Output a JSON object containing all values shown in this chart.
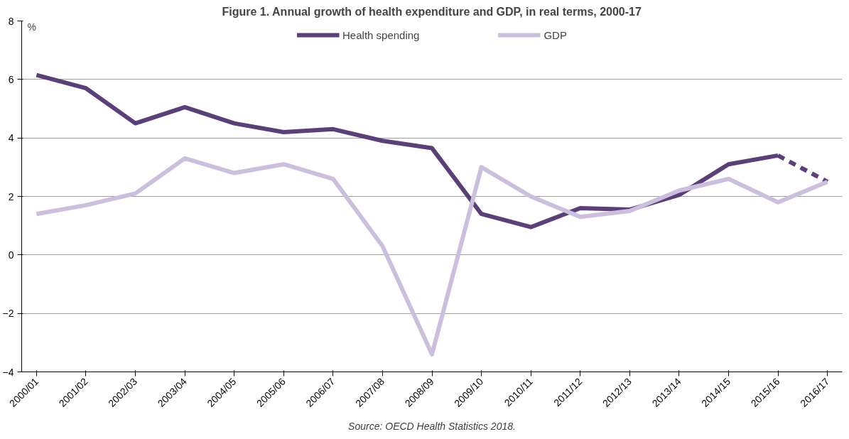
{
  "chart_data": {
    "type": "line",
    "title": "Figure 1. Annual growth of health expenditure and GDP, in real terms, 2000-17",
    "ylabel": "%",
    "categories": [
      "2000/01",
      "2001/02",
      "2002/03",
      "2003/04",
      "2004/05",
      "2005/06",
      "2006/07",
      "2007/08",
      "2008/09",
      "2009/10",
      "2010/11",
      "2011/12",
      "2012/13",
      "2013/14",
      "2014/15",
      "2015/16",
      "2016/17"
    ],
    "series": [
      {
        "name": "Health spending",
        "color": "#5b3f78",
        "values": [
          6.15,
          5.7,
          4.5,
          5.05,
          4.5,
          4.2,
          4.3,
          3.9,
          3.65,
          1.4,
          0.95,
          1.6,
          1.55,
          2.05,
          3.1,
          3.4,
          null
        ]
      },
      {
        "color": "#5b3f78",
        "line_style": "dashed",
        "values": [
          null,
          null,
          null,
          null,
          null,
          null,
          null,
          null,
          null,
          null,
          null,
          null,
          null,
          null,
          null,
          3.4,
          2.5
        ]
      },
      {
        "name": "GDP",
        "color": "#cbbfdd",
        "values": [
          1.4,
          1.7,
          2.1,
          3.3,
          2.8,
          3.1,
          2.6,
          0.3,
          -3.4,
          3.0,
          2.0,
          1.3,
          1.5,
          2.2,
          2.6,
          1.8,
          2.5
        ]
      }
    ],
    "ylim": [
      -4,
      8
    ],
    "yticks": [
      -4,
      -2,
      0,
      2,
      4,
      6,
      8
    ],
    "grid": "y",
    "legend": "top",
    "line_style": "solid",
    "annotations": [
      "Source: OECD Health Statistics 2018."
    ]
  }
}
